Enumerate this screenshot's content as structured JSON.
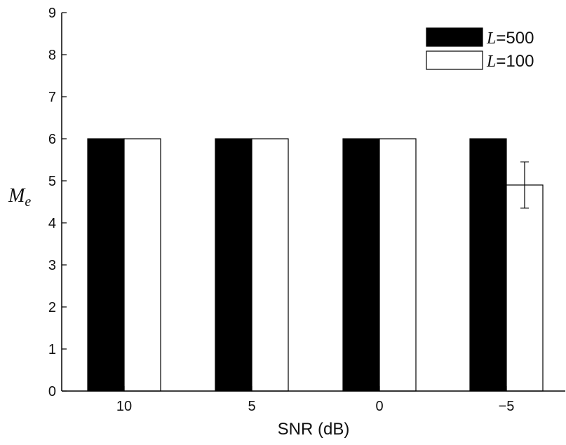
{
  "chart_data": {
    "type": "bar",
    "categories": [
      "10",
      "5",
      "0",
      "−5"
    ],
    "xlabel": "SNR (dB)",
    "ylabel_main": "M",
    "ylabel_sub": "e",
    "ylim": [
      0,
      9
    ],
    "yticks": [
      "0",
      "1",
      "2",
      "3",
      "4",
      "5",
      "6",
      "7",
      "8",
      "9"
    ],
    "legend_position": "top-right",
    "series": [
      {
        "name": "L=500",
        "name_italic": "L",
        "name_rest": "=500",
        "color": "#000000",
        "values": [
          6.0,
          6.0,
          6.0,
          6.0
        ],
        "errors": [
          0.0,
          0.0,
          0.0,
          0.0
        ]
      },
      {
        "name": "L=100",
        "name_italic": "L",
        "name_rest": "=100",
        "color": "#ffffff",
        "values": [
          6.0,
          6.0,
          6.0,
          4.9
        ],
        "errors": [
          0.0,
          0.0,
          0.0,
          0.55
        ]
      }
    ]
  }
}
